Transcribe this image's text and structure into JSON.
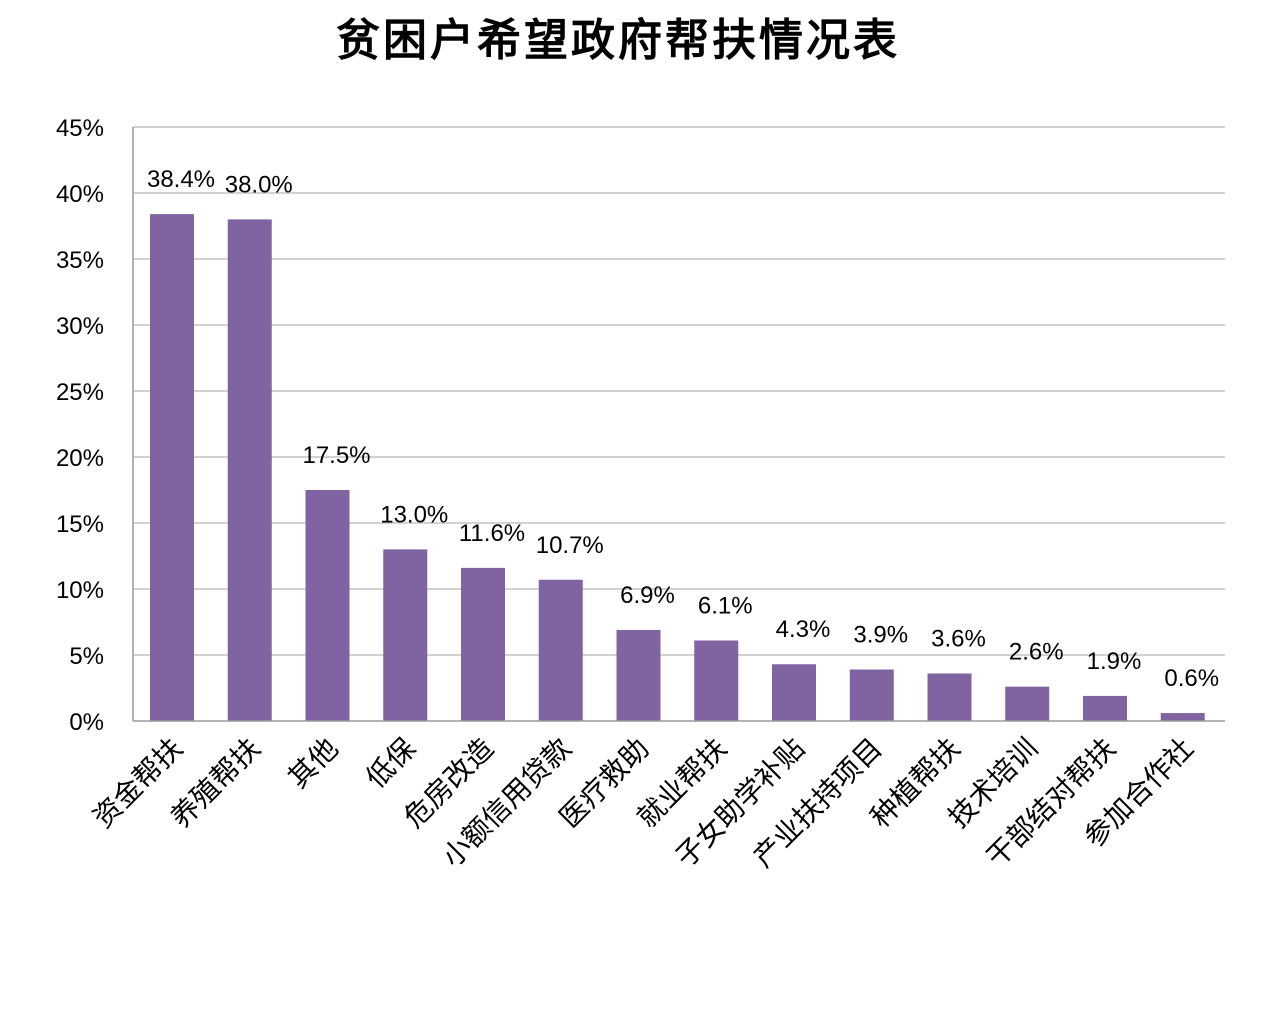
{
  "chart_data": {
    "type": "bar",
    "title": "贫困户希望政府帮扶情况表",
    "xlabel": "",
    "ylabel": "",
    "categories": [
      "资金帮扶",
      "养殖帮扶",
      "其他",
      "低保",
      "危房改造",
      "小额信用贷款",
      "医疗救助",
      "就业帮扶",
      "子女助学补贴",
      "产业扶持项目",
      "种植帮扶",
      "技术培训",
      "干部结对帮扶",
      "参加合作社"
    ],
    "values": [
      38.4,
      38.0,
      17.5,
      13.0,
      11.6,
      10.7,
      6.9,
      6.1,
      4.3,
      3.9,
      3.6,
      2.6,
      1.9,
      0.6
    ],
    "data_labels": [
      "38.4%",
      "38.0%",
      "17.5%",
      "13.0%",
      "11.6%",
      "10.7%",
      "6.9%",
      "6.1%",
      "4.3%",
      "3.9%",
      "3.6%",
      "2.6%",
      "1.9%",
      "0.6%"
    ],
    "ylim": [
      0,
      45
    ],
    "yticks": [
      0,
      5,
      10,
      15,
      20,
      25,
      30,
      35,
      40,
      45
    ],
    "ytick_labels": [
      "0%",
      "5%",
      "10%",
      "15%",
      "20%",
      "25%",
      "30%",
      "35%",
      "40%",
      "45%"
    ],
    "grid": true,
    "legend": "none",
    "bar_color": "#8064a2"
  }
}
